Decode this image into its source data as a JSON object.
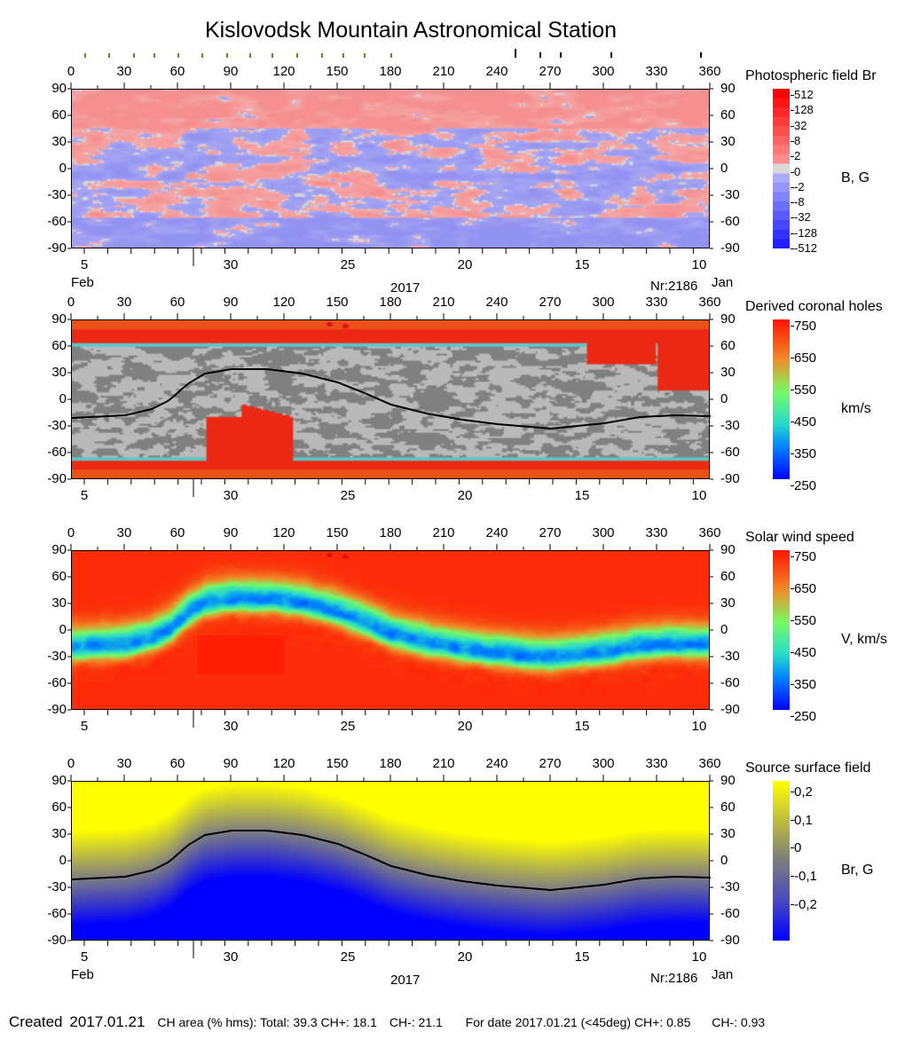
{
  "title": "Kislovodsk Mountain Astronomical Station",
  "footer": {
    "created_label": "Created",
    "created_date": "2017.01.21",
    "ch_area": "CH area (% hms): Total: 39.3 CH+: 18.1",
    "ch_minus": "CH-: 21.1",
    "for_date": "For date 2017.01.21 (<45deg) CH+: 0.85",
    "for_date_minus": "CH-: 0.93"
  },
  "colors": {
    "positive": "#f5a3a3",
    "negative": "#a3a8f2",
    "hole_light": "#b9b9b9",
    "hole_dark": "#7f7f7f",
    "wind_fast": "#ff1a00",
    "neutral_line": "#000000"
  },
  "chart_data": [
    {
      "type": "heatmap",
      "title": "Photospheric field Br",
      "colorbar_label": "B, G",
      "colorbar_ticks": [
        "512",
        "128",
        "32",
        "8",
        "2",
        "0",
        "-2",
        "-8",
        "-32",
        "-128",
        "-512"
      ],
      "xlim": [
        0,
        360
      ],
      "ylim": [
        -90,
        90
      ],
      "x_ticks": [
        "0",
        "30",
        "60",
        "90",
        "120",
        "150",
        "180",
        "210",
        "240",
        "270",
        "300",
        "330",
        "360"
      ],
      "y_ticks": [
        "90",
        "60",
        "30",
        "0",
        "-30",
        "-60",
        "-90"
      ],
      "date_ticks": [
        "5",
        "30",
        "25",
        "20",
        "15",
        "10"
      ],
      "months": [
        "Feb",
        "Jan"
      ],
      "year": "2017",
      "rotation": "Nr:2186",
      "top_markers_olive": [
        7.5,
        21,
        35,
        46.5,
        60,
        73.5,
        87.5,
        100.5,
        113,
        127,
        141,
        153,
        165,
        180
      ],
      "top_markers_black": [
        250,
        264,
        275.5,
        304,
        354.5
      ]
    },
    {
      "type": "heatmap",
      "title": "Derived coronal holes",
      "colorbar_label": "km/s",
      "colorbar_ticks": [
        "750",
        "650",
        "550",
        "450",
        "350",
        "250"
      ],
      "x_ticks": [
        "0",
        "30",
        "60",
        "90",
        "120",
        "150",
        "180",
        "210",
        "240",
        "270",
        "300",
        "330",
        "360"
      ],
      "y_ticks": [
        "90",
        "60",
        "30",
        "0",
        "-30",
        "-60",
        "-90"
      ],
      "date_ticks": [
        "5",
        "30",
        "25",
        "20",
        "15",
        "10"
      ]
    },
    {
      "type": "heatmap",
      "title": "Solar wind speed",
      "colorbar_label": "V, km/s",
      "colorbar_ticks": [
        "750",
        "650",
        "550",
        "450",
        "350",
        "250"
      ],
      "x_ticks": [
        "0",
        "30",
        "60",
        "90",
        "120",
        "150",
        "180",
        "210",
        "240",
        "270",
        "300",
        "330",
        "360"
      ],
      "y_ticks": [
        "90",
        "60",
        "30",
        "0",
        "-30",
        "-60",
        "-90"
      ],
      "date_ticks": [
        "5",
        "30",
        "25",
        "20",
        "15",
        "10"
      ]
    },
    {
      "type": "heatmap",
      "title": "Source surface field",
      "colorbar_label": "Br, G",
      "colorbar_ticks": [
        "0,2",
        "0,1",
        "0",
        "-0,1",
        "-0,2"
      ],
      "x_ticks": [
        "0",
        "30",
        "60",
        "90",
        "120",
        "150",
        "180",
        "210",
        "240",
        "270",
        "300",
        "330",
        "360"
      ],
      "y_ticks": [
        "90",
        "60",
        "30",
        "0",
        "-30",
        "-60",
        "-90"
      ],
      "date_ticks": [
        "5",
        "30",
        "25",
        "20",
        "15",
        "10"
      ],
      "months": [
        "Feb",
        "Jan"
      ],
      "year": "2017",
      "rotation": "Nr:2186"
    }
  ],
  "neutral_line": {
    "lon": [
      0,
      30,
      45,
      55,
      65,
      75,
      90,
      110,
      130,
      150,
      165,
      180,
      200,
      220,
      240,
      270,
      300,
      320,
      340,
      360
    ],
    "lat": [
      -20,
      -17,
      -10,
      0,
      18,
      30,
      35,
      35,
      30,
      20,
      8,
      -5,
      -15,
      -22,
      -27,
      -32,
      -26,
      -19,
      -17,
      -18
    ]
  }
}
